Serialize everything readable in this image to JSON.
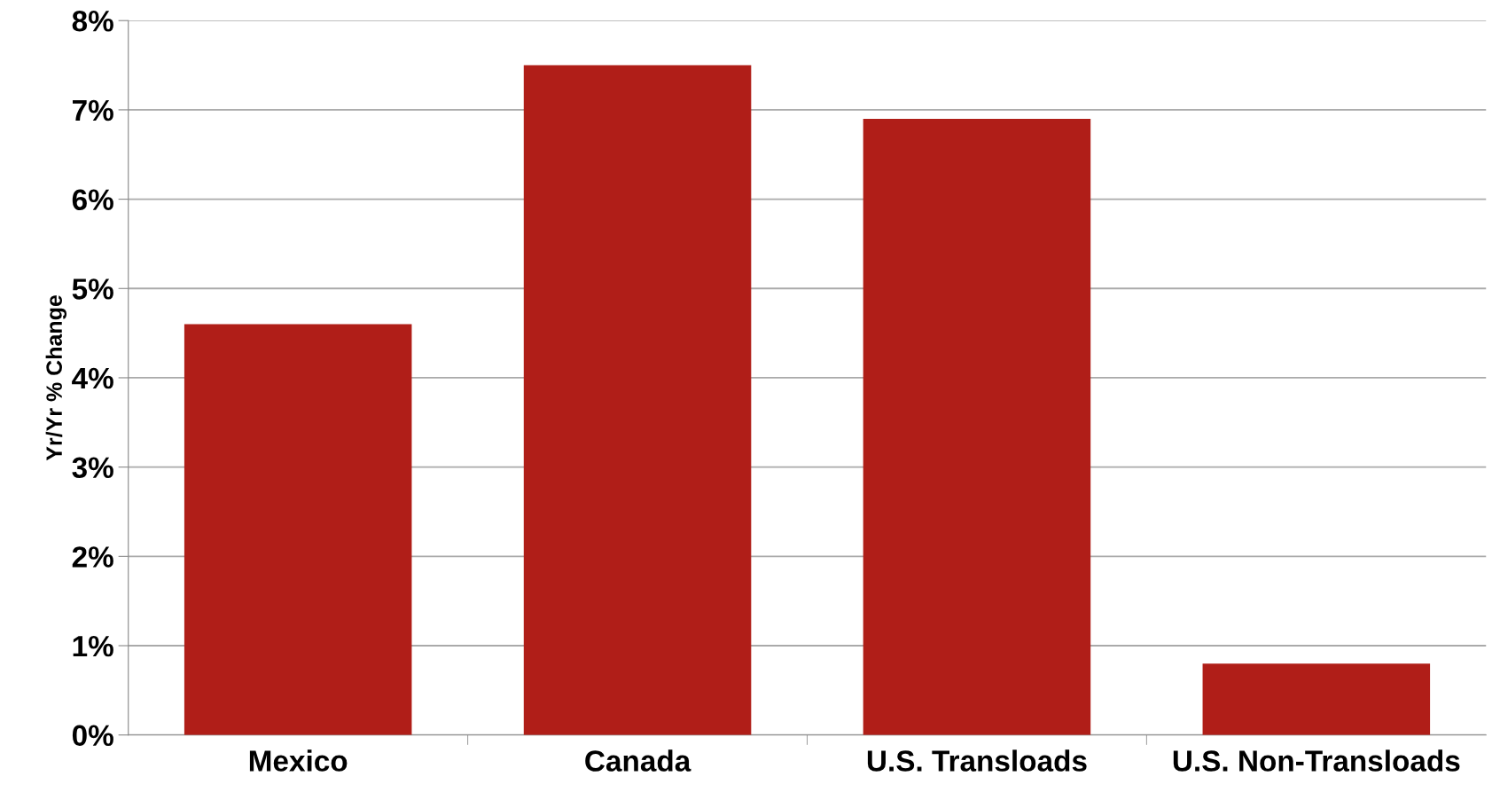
{
  "chart_data": {
    "type": "bar",
    "ylabel": "Yr/Yr % Change",
    "categories": [
      "Mexico",
      "Canada",
      "U.S. Transloads",
      "U.S. Non-Transloads"
    ],
    "values": [
      4.6,
      7.5,
      6.9,
      0.8
    ],
    "color": "#b01e18",
    "ylim": [
      0,
      8
    ],
    "yticks": [
      {
        "value": 0,
        "label": "0%"
      },
      {
        "value": 1,
        "label": "1%"
      },
      {
        "value": 2,
        "label": "2%"
      },
      {
        "value": 3,
        "label": "3%"
      },
      {
        "value": 4,
        "label": "4%"
      },
      {
        "value": 5,
        "label": "5%"
      },
      {
        "value": 6,
        "label": "6%"
      },
      {
        "value": 7,
        "label": "7%"
      },
      {
        "value": 8,
        "label": "8%"
      }
    ],
    "grid": "y",
    "legend": false
  }
}
